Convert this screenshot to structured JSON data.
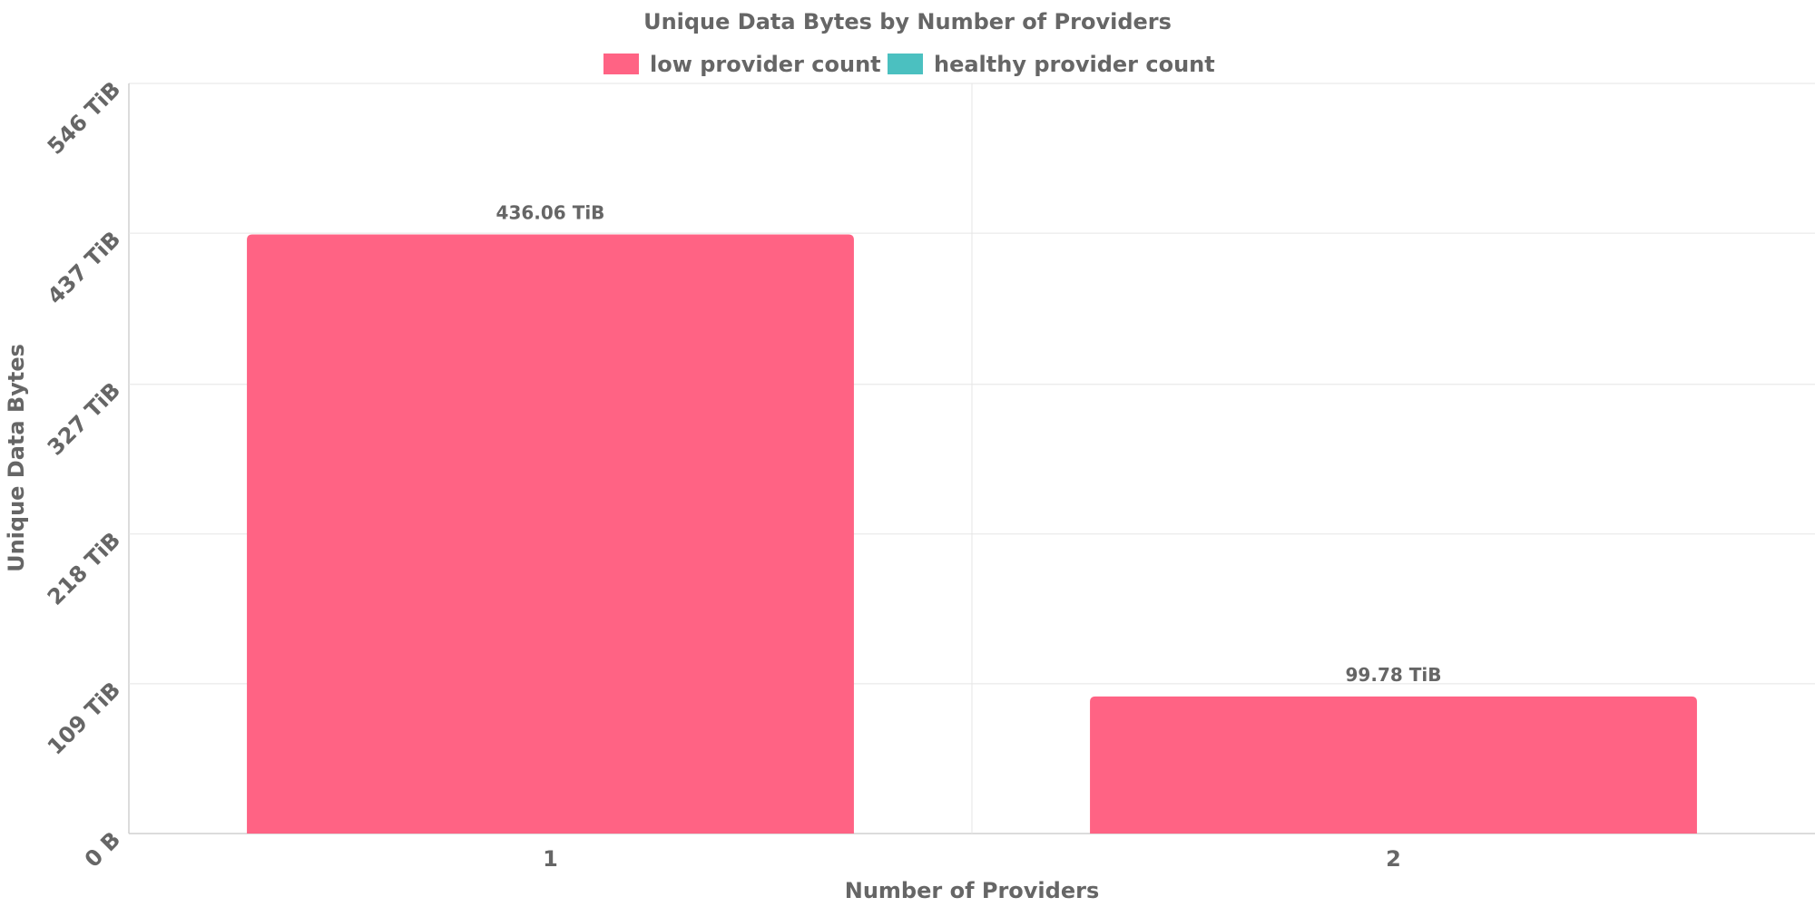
{
  "chart_data": {
    "type": "bar",
    "title": "Unique Data Bytes by Number of Providers",
    "xlabel": "Number of Providers",
    "ylabel": "Unique Data Bytes",
    "categories": [
      "1",
      "2"
    ],
    "series": [
      {
        "name": "low provider count",
        "color": "#ff6384",
        "values": [
          436.06,
          99.78
        ],
        "value_labels": [
          "436.06 TiB",
          "99.78 TiB"
        ]
      },
      {
        "name": "healthy provider count",
        "color": "#4bc0c0",
        "values": [
          0,
          0
        ],
        "value_labels": [
          "",
          ""
        ]
      }
    ],
    "y_unit": "TiB",
    "ylim": [
      0,
      546
    ],
    "y_ticks": [
      0,
      109,
      218,
      327,
      437,
      546
    ],
    "y_tick_labels": [
      "0 B",
      "109 TiB",
      "218 TiB",
      "327 TiB",
      "437 TiB",
      "546 TiB"
    ],
    "grid": true,
    "legend_position": "top"
  }
}
